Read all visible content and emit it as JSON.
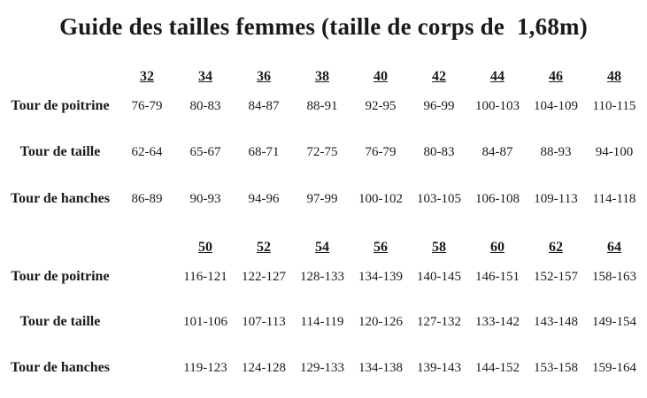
{
  "title": "Guide des tailles femmes (taille de corps de  1,68m)",
  "colors": {
    "text": "#1a1a1a",
    "background": "#ffffff"
  },
  "table_upper": {
    "sizes": [
      "32",
      "34",
      "36",
      "38",
      "40",
      "42",
      "44",
      "46",
      "48"
    ],
    "rows": [
      {
        "label": "Tour de poitrine",
        "values": [
          "76-79",
          "80-83",
          "84-87",
          "88-91",
          "92-95",
          "96-99",
          "100-103",
          "104-109",
          "110-115"
        ]
      },
      {
        "label": "Tour de taille",
        "values": [
          "62-64",
          "65-67",
          "68-71",
          "72-75",
          "76-79",
          "80-83",
          "84-87",
          "88-93",
          "94-100"
        ]
      },
      {
        "label": "Tour de hanches",
        "values": [
          "86-89",
          "90-93",
          "94-96",
          "97-99",
          "100-102",
          "103-105",
          "106-108",
          "109-113",
          "114-118"
        ]
      }
    ]
  },
  "table_lower": {
    "sizes": [
      "50",
      "52",
      "54",
      "56",
      "58",
      "60",
      "62",
      "64"
    ],
    "rows": [
      {
        "label": "Tour de poitrine",
        "values": [
          "116-121",
          "122-127",
          "128-133",
          "134-139",
          "140-145",
          "146-151",
          "152-157",
          "158-163"
        ]
      },
      {
        "label": "Tour de taille",
        "values": [
          "101-106",
          "107-113",
          "114-119",
          "120-126",
          "127-132",
          "133-142",
          "143-148",
          "149-154"
        ]
      },
      {
        "label": "Tour de hanches",
        "values": [
          "119-123",
          "124-128",
          "129-133",
          "134-138",
          "139-143",
          "144-152",
          "153-158",
          "159-164"
        ]
      }
    ]
  }
}
